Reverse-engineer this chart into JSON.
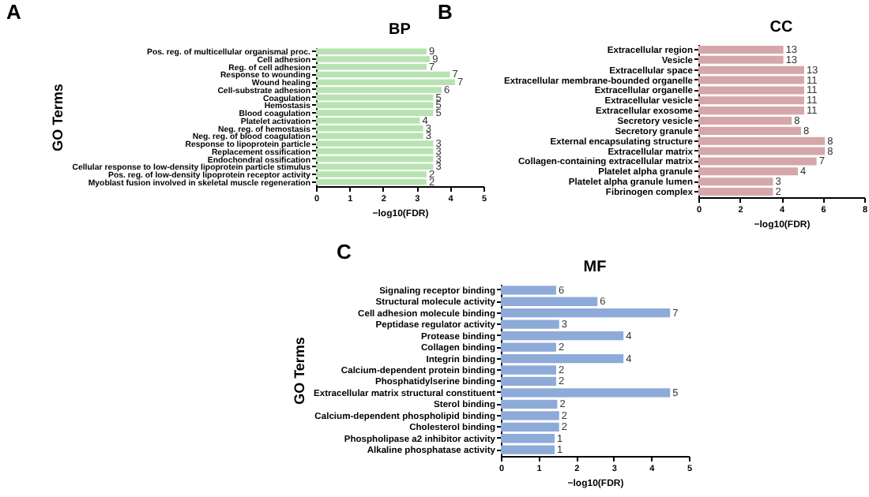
{
  "chart_data": [
    {
      "type": "bar",
      "orientation": "horizontal",
      "title": "BP",
      "xlabel": "−log10(FDR)",
      "ylabel": "GO Terms",
      "color": "#b8e2b2",
      "categories": [
        "Pos. reg. of multicellular organismal proc.",
        "Cell adhesion",
        "Reg. of cell adhesion",
        "Response to wounding",
        "Wound healing",
        "Cell-substrate adhesion",
        "Coagulation",
        "Hemostasis",
        "Blood coagulation",
        "Platelet activation",
        "Neg. reg. of hemostasis",
        "Neg. reg. of blood coagulation",
        "Response to lipoprotein particle",
        "Replacement ossification",
        "Endochondral ossification",
        "Cellular response to low-density lipoprotein particle stimulus",
        "Pos. reg. of low-density lipoprotein receptor activity",
        "Myoblast fusion involved in skeletal muscle regeneration"
      ],
      "values": [
        3.3,
        3.4,
        3.3,
        4.0,
        4.15,
        3.75,
        3.5,
        3.5,
        3.5,
        3.1,
        3.2,
        3.2,
        3.5,
        3.5,
        3.5,
        3.5,
        3.3,
        3.3
      ],
      "annotations": [
        "A",
        {
          "text": "9",
          "x": 3.3,
          "y": "Pos. reg. of multicellular organismal proc."
        },
        {
          "text": "9",
          "x": 3.4,
          "y": "Cell adhesion"
        },
        {
          "text": "7",
          "x": 3.3,
          "y": "Reg. of cell adhesion"
        },
        {
          "text": "7",
          "x": 4.0,
          "y": "Response to wounding"
        },
        {
          "text": "7",
          "x": 4.15,
          "y": "Wound healing"
        },
        {
          "text": "6",
          "x": 3.75,
          "y": "Cell-substrate adhesion"
        },
        {
          "text": "5",
          "x": 3.5,
          "y": "Coagulation"
        },
        {
          "text": "5",
          "x": 3.5,
          "y": "Hemostasis"
        },
        {
          "text": "5",
          "x": 3.5,
          "y": "Blood coagulation"
        },
        {
          "text": "4",
          "x": 3.1,
          "y": "Platelet activation"
        },
        {
          "text": "3",
          "x": 3.2,
          "y": "Neg. reg. of hemostasis"
        },
        {
          "text": "3",
          "x": 3.2,
          "y": "Neg. reg. of blood coagulation"
        },
        {
          "text": "3",
          "x": 3.5,
          "y": "Response to lipoprotein particle"
        },
        {
          "text": "3",
          "x": 3.5,
          "y": "Replacement ossification"
        },
        {
          "text": "3",
          "x": 3.5,
          "y": "Endochondral ossification"
        },
        {
          "text": "3",
          "x": 3.5,
          "y": "Cellular response to low-density lipoprotein particle stimulus"
        },
        {
          "text": "2",
          "x": 3.3,
          "y": "Pos. reg. of low-density lipoprotein receptor activity"
        },
        {
          "text": "2",
          "x": 3.3,
          "y": "Myoblast fusion involved in skeletal muscle regeneration"
        }
      ],
      "xlim": [
        0,
        5
      ],
      "xticks": [
        0,
        1,
        2,
        3,
        4,
        5
      ]
    },
    {
      "type": "bar",
      "orientation": "horizontal",
      "title": "CC",
      "xlabel": "−log10(FDR)",
      "color": "#d5a7aa",
      "categories": [
        "Extracellular region",
        "Vesicle",
        "Extracellular space",
        "Extracellular membrane-bounded organelle",
        "Extracellular organelle",
        "Extracellular vesicle",
        "Extracellular exosome",
        "Secretory vesicle",
        "Secretory granule",
        "External encapsulating structure",
        "Extracellular matrix",
        "Collagen-containing extracellular matrix",
        "Platelet alpha granule",
        "Platelet alpha granule lumen",
        "Fibrinogen complex"
      ],
      "values": [
        4.1,
        4.1,
        5.1,
        5.1,
        5.1,
        5.1,
        5.1,
        4.5,
        4.95,
        6.1,
        6.1,
        5.7,
        4.8,
        3.6,
        3.6
      ],
      "annotations": [
        "B",
        {
          "text": "13",
          "x": 4.1,
          "y": "Extracellular region"
        },
        {
          "text": "13",
          "x": 4.1,
          "y": "Vesicle"
        },
        {
          "text": "13",
          "x": 5.1,
          "y": "Extracellular space"
        },
        {
          "text": "11",
          "x": 5.1,
          "y": "Extracellular membrane-bounded organelle"
        },
        {
          "text": "11",
          "x": 5.1,
          "y": "Extracellular organelle"
        },
        {
          "text": "11",
          "x": 5.1,
          "y": "Extracellular vesicle"
        },
        {
          "text": "11",
          "x": 5.1,
          "y": "Extracellular exosome"
        },
        {
          "text": "8",
          "x": 4.5,
          "y": "Secretory vesicle"
        },
        {
          "text": "8",
          "x": 4.95,
          "y": "Secretory granule"
        },
        {
          "text": "8",
          "x": 6.1,
          "y": "External encapsulating structure"
        },
        {
          "text": "8",
          "x": 6.1,
          "y": "Extracellular matrix"
        },
        {
          "text": "7",
          "x": 5.7,
          "y": "Collagen-containing extracellular matrix"
        },
        {
          "text": "4",
          "x": 4.8,
          "y": "Platelet alpha granule"
        },
        {
          "text": "3",
          "x": 3.6,
          "y": "Platelet alpha granule lumen"
        },
        {
          "text": "2",
          "x": 3.6,
          "y": "Fibrinogen complex"
        }
      ],
      "xlim": [
        0,
        8
      ],
      "xticks": [
        0,
        2,
        4,
        6,
        8
      ]
    },
    {
      "type": "bar",
      "orientation": "horizontal",
      "title": "MF",
      "xlabel": "−log10(FDR)",
      "ylabel": "GO Terms",
      "color": "#8eaad8",
      "categories": [
        "Signaling receptor binding",
        "Structural molecule activity",
        "Cell adhesion molecule binding",
        "Peptidase regulator activity",
        "Protease binding",
        "Collagen binding",
        "Integrin binding",
        "Calcium-dependent protein binding",
        "Phosphatidylserine binding",
        "Extracellular matrix structural constituent",
        "Sterol binding",
        "Calcium-dependent phospholipid binding",
        "Cholesterol binding",
        "Phospholipase a2 inhibitor activity",
        "Alkaline phosphatase activity"
      ],
      "values": [
        1.47,
        2.57,
        4.5,
        1.55,
        3.26,
        1.47,
        3.26,
        1.47,
        1.47,
        4.5,
        1.5,
        1.55,
        1.55,
        1.43,
        1.43
      ],
      "annotations": [
        "C",
        {
          "text": "6",
          "x": 1.47,
          "y": "Signaling receptor binding"
        },
        {
          "text": "6",
          "x": 2.57,
          "y": "Structural molecule activity"
        },
        {
          "text": "7",
          "x": 4.5,
          "y": "Cell adhesion molecule binding"
        },
        {
          "text": "3",
          "x": 1.55,
          "y": "Peptidase regulator activity"
        },
        {
          "text": "4",
          "x": 3.26,
          "y": "Protease binding"
        },
        {
          "text": "2",
          "x": 1.47,
          "y": "Collagen binding"
        },
        {
          "text": "4",
          "x": 3.26,
          "y": "Integrin binding"
        },
        {
          "text": "2",
          "x": 1.47,
          "y": "Calcium-dependent protein binding"
        },
        {
          "text": "2",
          "x": 1.47,
          "y": "Phosphatidylserine binding"
        },
        {
          "text": "5",
          "x": 4.5,
          "y": "Extracellular matrix structural constituent"
        },
        {
          "text": "2",
          "x": 1.5,
          "y": "Sterol binding"
        },
        {
          "text": "2",
          "x": 1.55,
          "y": "Calcium-dependent phospholipid binding"
        },
        {
          "text": "2",
          "x": 1.55,
          "y": "Cholesterol binding"
        },
        {
          "text": "1",
          "x": 1.43,
          "y": "Phospholipase a2 inhibitor activity"
        },
        {
          "text": "1",
          "x": 1.43,
          "y": "Alkaline phosphatase activity"
        }
      ],
      "xlim": [
        0,
        5
      ],
      "xticks": [
        0,
        1,
        2,
        3,
        4,
        5
      ]
    }
  ]
}
